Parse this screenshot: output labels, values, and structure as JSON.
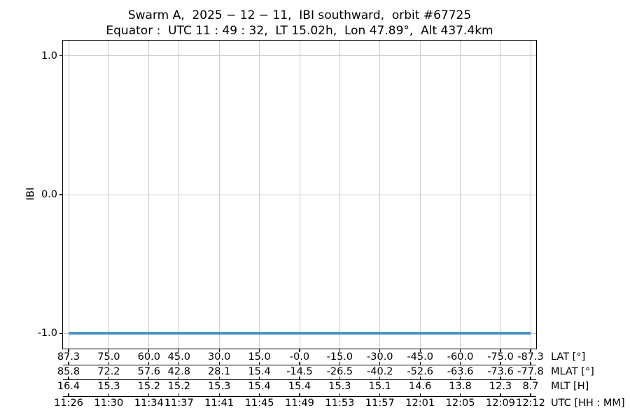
{
  "figure": {
    "title_line1": "Swarm A,  2025 − 12 − 11,  IBI southward,  orbit #67725",
    "title_line2": "Equator :  UTC 11 : 49 : 32,  LT 15.02h,  Lon 47.89°,  Alt 437.4km"
  },
  "chart_data": {
    "type": "line",
    "title": "Swarm A, 2025-12-11, IBI southward, orbit #67725",
    "subtitle": "Equator: UTC 11:49:32, LT 15.02h, Lon 47.89°, Alt 437.4km",
    "ylabel": "IBI",
    "ylim": [
      -1.11,
      1.11
    ],
    "yticks": [
      {
        "value": 1.0,
        "label": "1.0"
      },
      {
        "value": 0.0,
        "label": "0.0"
      },
      {
        "value": -1.0,
        "label": "-1.0"
      }
    ],
    "grid": true,
    "legend": "none",
    "series": [
      {
        "name": "IBI",
        "constant_y": -1.0,
        "color": "#4d96ca"
      }
    ],
    "x_ticks": {
      "range_minutes": [
        0,
        46
      ],
      "positions_minutes": [
        0,
        4,
        8,
        11,
        15,
        19,
        23,
        27,
        31,
        35,
        39,
        43,
        46
      ],
      "rows": [
        {
          "label": "LAT [°]",
          "values": [
            "87.3",
            "75.0",
            "60.0",
            "45.0",
            "30.0",
            "15.0",
            "-0.0",
            "-15.0",
            "-30.0",
            "-45.0",
            "-60.0",
            "-75.0",
            "-87.3"
          ]
        },
        {
          "label": "MLAT [°]",
          "values": [
            "85.8",
            "72.2",
            "57.6",
            "42.8",
            "28.1",
            "15.4",
            "-14.5",
            "-26.5",
            "-40.2",
            "-52.6",
            "-63.6",
            "-73.6",
            "-77.8"
          ]
        },
        {
          "label": "MLT [H]",
          "values": [
            "16.4",
            "15.3",
            "15.2",
            "15.2",
            "15.3",
            "15.4",
            "15.4",
            "15.3",
            "15.1",
            "14.6",
            "13.8",
            "12.3",
            "8.7"
          ]
        },
        {
          "label": "UTC [HH : MM]",
          "values": [
            "11:26",
            "11:30",
            "11:34",
            "11:37",
            "11:41",
            "11:45",
            "11:49",
            "11:53",
            "11:57",
            "12:01",
            "12:05",
            "12:09",
            "12:12"
          ]
        }
      ]
    },
    "colors": {
      "line": "#4d96ca",
      "grid": "#cccccc",
      "spine": "#000000",
      "text": "#000000"
    }
  }
}
